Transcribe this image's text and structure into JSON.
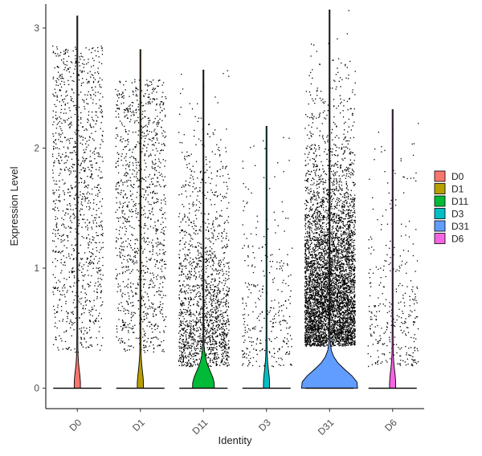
{
  "chart_data": {
    "type": "violin",
    "title": "",
    "xlabel": "Identity",
    "ylabel": "Expression Level",
    "ylim": [
      -0.17,
      3.2
    ],
    "yticks": [
      0,
      1,
      2,
      3
    ],
    "categories": [
      "D0",
      "D1",
      "D11",
      "D3",
      "D31",
      "D6"
    ],
    "legend_position": "right",
    "points_shown": true,
    "series": [
      {
        "name": "D0",
        "color": "#F8766D",
        "max": 3.1,
        "violin_peak_density": 0.02,
        "point_density": "medium",
        "point_spread": "uniform"
      },
      {
        "name": "D1",
        "color": "#B79F00",
        "max": 2.82,
        "violin_peak_density": 0.02,
        "point_density": "medium",
        "point_spread": "uniform"
      },
      {
        "name": "D11",
        "color": "#00BA38",
        "max": 2.65,
        "violin_peak_density": 0.07,
        "point_density": "high",
        "point_spread": "low"
      },
      {
        "name": "D3",
        "color": "#00BFC4",
        "max": 2.18,
        "violin_peak_density": 0.02,
        "point_density": "low",
        "point_spread": "low"
      },
      {
        "name": "D31",
        "color": "#619CFF",
        "max": 3.15,
        "violin_peak_density": 0.18,
        "point_density": "very-high",
        "point_spread": "mid"
      },
      {
        "name": "D6",
        "color": "#F564E3",
        "max": 2.32,
        "violin_peak_density": 0.02,
        "point_density": "low",
        "point_spread": "low"
      }
    ]
  }
}
